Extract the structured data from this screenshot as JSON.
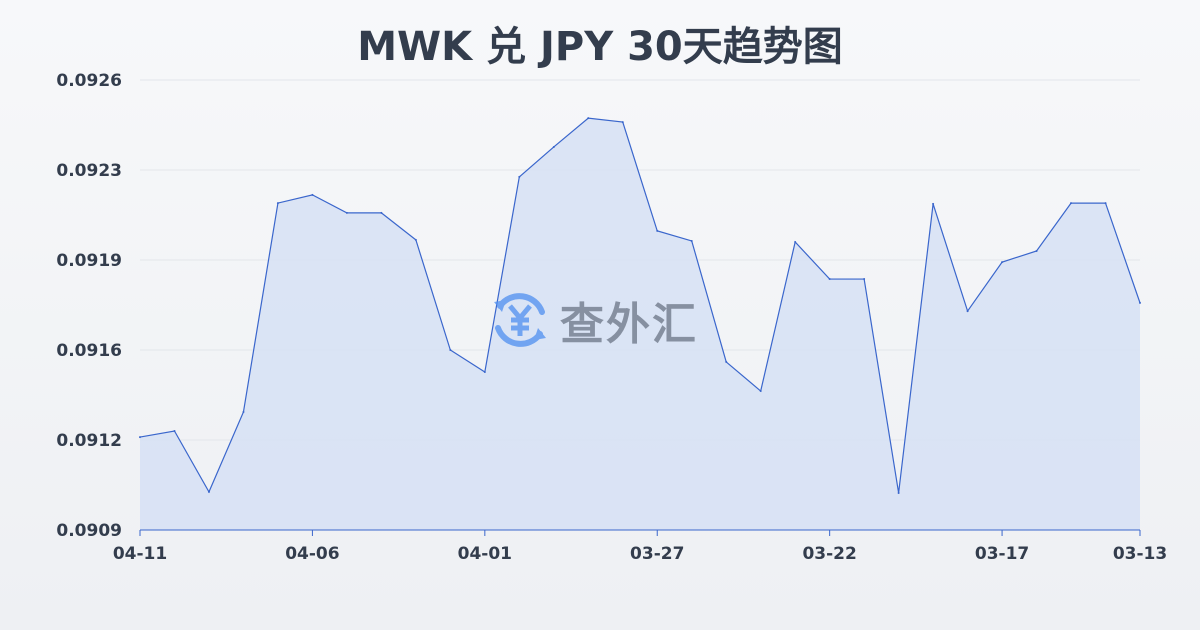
{
  "chart_data": {
    "type": "area",
    "title": "MWK 兑 JPY 30天趋势图",
    "xlabel": "",
    "ylabel": "",
    "x": [
      "04-11",
      "04-10",
      "04-09",
      "04-08",
      "04-07",
      "04-06",
      "04-05",
      "04-04",
      "04-03",
      "04-02",
      "04-01",
      "03-31",
      "03-30",
      "03-29",
      "03-28",
      "03-27",
      "03-26",
      "03-25",
      "03-24",
      "03-23",
      "03-22",
      "03-21",
      "03-20",
      "03-19",
      "03-18",
      "03-17",
      "03-16",
      "03-15",
      "03-14",
      "03-13"
    ],
    "values": [
      0.091251,
      0.091274,
      0.091044,
      0.091346,
      0.092135,
      0.092166,
      0.092098,
      0.092098,
      0.091996,
      0.09158,
      0.091497,
      0.092234,
      0.092347,
      0.092456,
      0.092441,
      0.09203,
      0.091992,
      0.091535,
      0.091425,
      0.091988,
      0.091848,
      0.091848,
      0.09104,
      0.092132,
      0.091727,
      0.091912,
      0.091954,
      0.092135,
      0.092135,
      0.091758
    ],
    "x_tick_labels": [
      "04-11",
      "04-06",
      "04-01",
      "03-27",
      "03-22",
      "03-17",
      "03-13"
    ],
    "y_tick_labels": [
      "0.0926",
      "0.0923",
      "0.0919",
      "0.0916",
      "0.0912",
      "0.0909"
    ],
    "ylim": [
      0.0909,
      0.0926
    ],
    "grid": true,
    "line_color": "#3a66cc",
    "fill_color": "#d6e0f5"
  },
  "watermark": {
    "text": "查外汇",
    "icon": "yen-exchange-icon"
  }
}
